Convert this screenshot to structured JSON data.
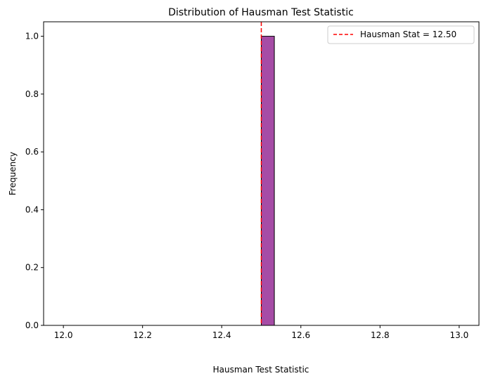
{
  "chart_data": {
    "type": "histogram",
    "title": "Distribution of Hausman Test Statistic",
    "xlabel": "Hausman Test Statistic",
    "ylabel": "Frequency",
    "xlim": [
      11.95,
      13.05
    ],
    "ylim": [
      0,
      1.05
    ],
    "xticks": [
      "12.0",
      "12.2",
      "12.4",
      "12.6",
      "12.8",
      "13.0"
    ],
    "yticks": [
      "0.0",
      "0.2",
      "0.4",
      "0.6",
      "0.8",
      "1.0"
    ],
    "bins": [
      {
        "x0": 12.5,
        "x1": 12.533,
        "count": 1
      }
    ],
    "bar_color": "#800080",
    "reference_line": {
      "x": 12.5,
      "label": "Hausman Stat = 12.50",
      "color": "#ff0000",
      "style": "dashed"
    },
    "legend": {
      "position": "top-right"
    },
    "grid": false
  }
}
